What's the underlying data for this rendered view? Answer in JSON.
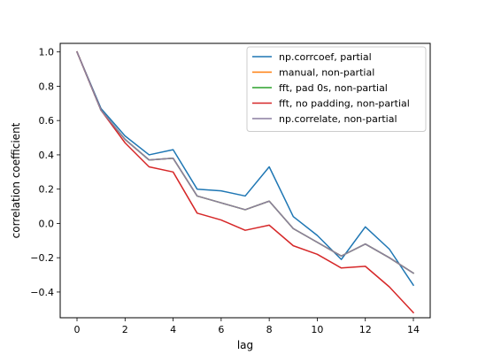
{
  "chart_data": {
    "type": "line",
    "title": "",
    "xlabel": "lag",
    "ylabel": "correlation coefficient",
    "x": [
      0,
      1,
      2,
      3,
      4,
      5,
      6,
      7,
      8,
      9,
      10,
      11,
      12,
      13,
      14
    ],
    "xlim": [
      -0.7,
      14.7
    ],
    "ylim": [
      -0.55,
      1.05
    ],
    "xticks": [
      0,
      2,
      4,
      6,
      8,
      10,
      12,
      14
    ],
    "xtick_labels": [
      "0",
      "2",
      "4",
      "6",
      "8",
      "10",
      "12",
      "14"
    ],
    "yticks": [
      1.0,
      0.8,
      0.6,
      0.4,
      0.2,
      0.0,
      -0.2,
      -0.4
    ],
    "ytick_labels": [
      "1.0",
      "0.8",
      "0.6",
      "0.4",
      "0.2",
      "0.0",
      "−0.2",
      "−0.4"
    ],
    "grid": false,
    "legend_position": "top-right",
    "series": [
      {
        "name": "np.corrcoef, partial",
        "color": "#1f77b4",
        "values": [
          1.0,
          0.67,
          0.51,
          0.4,
          0.43,
          0.2,
          0.19,
          0.16,
          0.33,
          0.04,
          -0.07,
          -0.21,
          -0.02,
          -0.15,
          -0.36
        ]
      },
      {
        "name": "manual, non-partial",
        "color": "#ff7f0e",
        "values": [
          1.0,
          0.66,
          0.49,
          0.37,
          0.38,
          0.16,
          0.12,
          0.08,
          0.13,
          -0.03,
          -0.11,
          -0.19,
          -0.12,
          -0.2,
          -0.29
        ]
      },
      {
        "name": "fft, pad 0s, non-partial",
        "color": "#2ca02c",
        "values": [
          1.0,
          0.66,
          0.49,
          0.37,
          0.38,
          0.16,
          0.12,
          0.08,
          0.13,
          -0.03,
          -0.11,
          -0.19,
          -0.12,
          -0.2,
          -0.29
        ]
      },
      {
        "name": "fft, no padding, non-partial",
        "color": "#d62728",
        "values": [
          1.0,
          0.66,
          0.47,
          0.33,
          0.3,
          0.06,
          0.02,
          -0.04,
          -0.01,
          -0.13,
          -0.18,
          -0.26,
          -0.25,
          -0.37,
          -0.52
        ]
      },
      {
        "name": "np.correlate, non-partial",
        "color": "#8c7fa0",
        "values": [
          1.0,
          0.66,
          0.49,
          0.37,
          0.38,
          0.16,
          0.12,
          0.08,
          0.13,
          -0.03,
          -0.11,
          -0.19,
          -0.12,
          -0.2,
          -0.29
        ]
      }
    ]
  }
}
